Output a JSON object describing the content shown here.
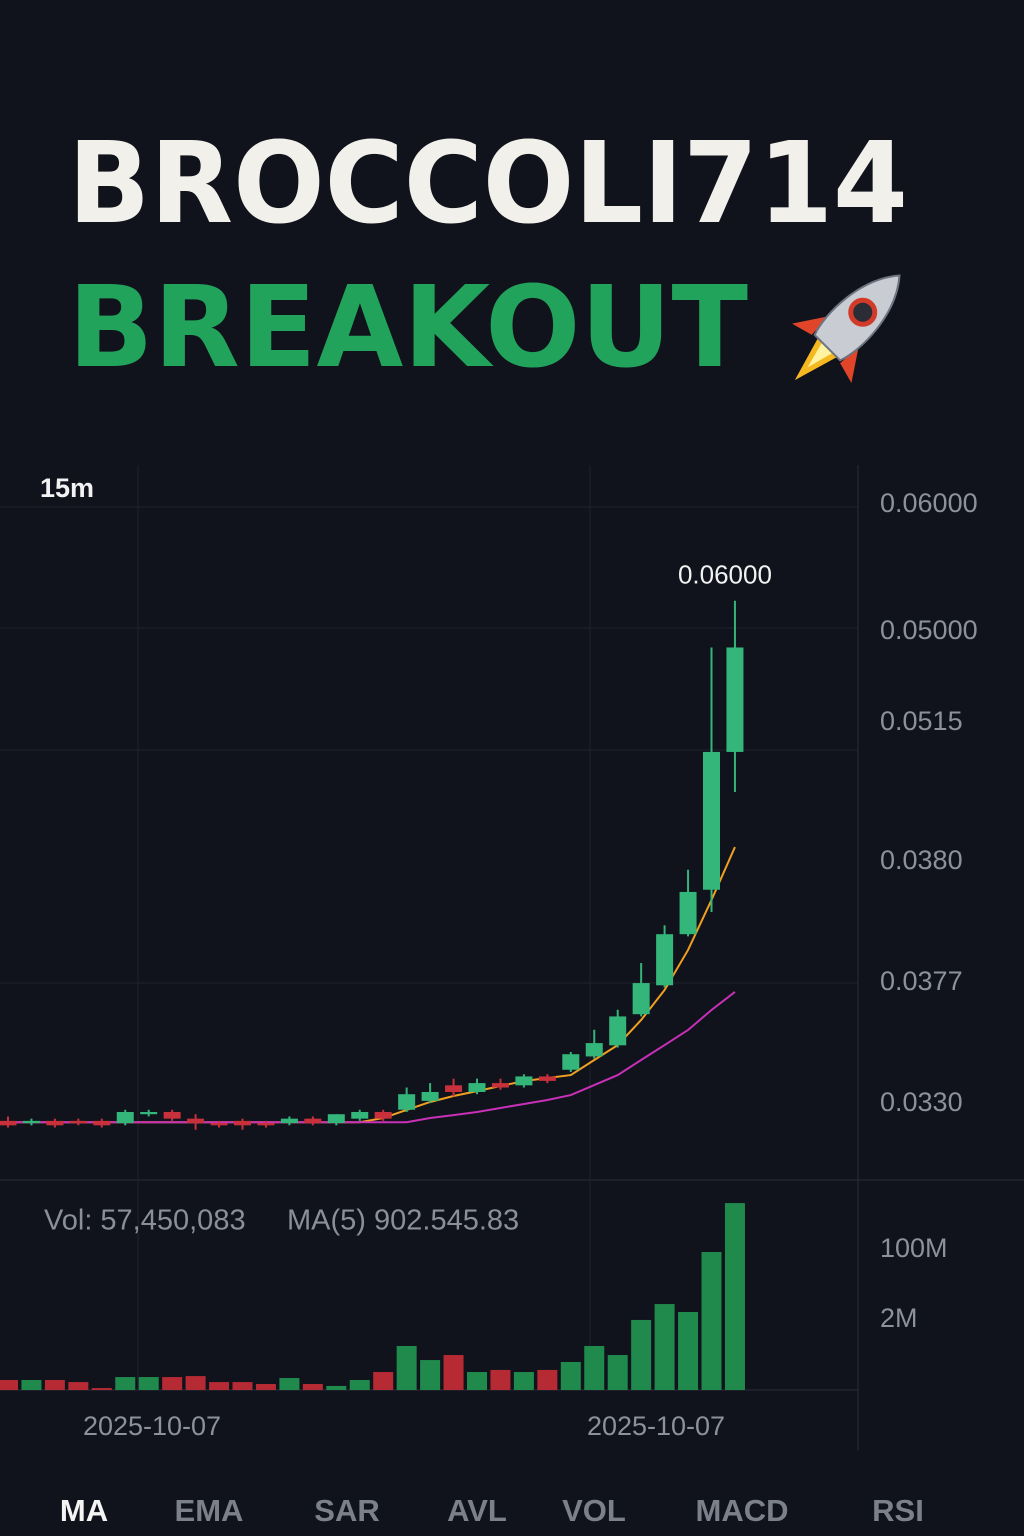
{
  "header": {
    "title": "BROCCOLI714",
    "subtitle": "BREAKOUT"
  },
  "timeframe": "15m",
  "price_labels": [
    "0.06000",
    "0.05000",
    "0.0515",
    "0.0380",
    "0.0377",
    "0.0330"
  ],
  "volume_info": {
    "volume": "Vol: 57,450,083",
    "ma": "MA(5) 902.545.83"
  },
  "volume_labels": [
    "100M",
    "2M"
  ],
  "date_labels": [
    "2025-10-07",
    "2025-10-07"
  ],
  "tabs": [
    "MA",
    "EMA",
    "SAR",
    "AVL",
    "VOL",
    "MACD",
    "RSI"
  ],
  "chart_data": {
    "type": "candlestick",
    "annotation": "0.06000",
    "ylim": [
      0.02954,
      0.06171
    ],
    "up_color": "#34b57a",
    "down_color": "#c8313b",
    "open": [
      0.0322,
      0.0321,
      0.0322,
      0.0322,
      0.0322,
      0.0321,
      0.0325,
      0.0326,
      0.0323,
      0.0321,
      0.0322,
      0.0321,
      0.0321,
      0.0323,
      0.0321,
      0.0323,
      0.0326,
      0.0327,
      0.0331,
      0.0338,
      0.0335,
      0.0339,
      0.0338,
      0.0342,
      0.0345,
      0.0351,
      0.0356,
      0.037,
      0.0383,
      0.0406,
      0.0426,
      0.0488
    ],
    "high": [
      0.0324,
      0.0323,
      0.0323,
      0.0323,
      0.0323,
      0.0327,
      0.0327,
      0.0327,
      0.0325,
      0.0322,
      0.0323,
      0.0322,
      0.0324,
      0.0324,
      0.0325,
      0.0327,
      0.0327,
      0.0337,
      0.0339,
      0.0341,
      0.0341,
      0.0341,
      0.0343,
      0.0343,
      0.0353,
      0.0363,
      0.0372,
      0.0393,
      0.041,
      0.0435,
      0.0535,
      0.0556
    ],
    "low": [
      0.0319,
      0.032,
      0.0319,
      0.032,
      0.0319,
      0.032,
      0.0324,
      0.0322,
      0.0318,
      0.0319,
      0.0318,
      0.0319,
      0.032,
      0.032,
      0.032,
      0.0322,
      0.0322,
      0.0326,
      0.033,
      0.0333,
      0.0334,
      0.0336,
      0.0337,
      0.0339,
      0.0344,
      0.035,
      0.0355,
      0.0369,
      0.0382,
      0.0405,
      0.0416,
      0.047
    ],
    "close": [
      0.032,
      0.0322,
      0.032,
      0.0321,
      0.032,
      0.0326,
      0.0326,
      0.0323,
      0.0321,
      0.032,
      0.032,
      0.032,
      0.0323,
      0.0321,
      0.0325,
      0.0326,
      0.0323,
      0.0334,
      0.0335,
      0.0335,
      0.0339,
      0.0337,
      0.0342,
      0.034,
      0.0352,
      0.0357,
      0.0369,
      0.0384,
      0.0406,
      0.0425,
      0.0488,
      0.0535
    ],
    "ma_series": [
      {
        "color": "#f0a020",
        "values": [
          0.03214,
          0.03214,
          0.03214,
          0.03214,
          0.03214,
          0.03214,
          0.03214,
          0.03214,
          0.03214,
          0.03214,
          0.03214,
          0.03214,
          0.03214,
          0.03214,
          0.03214,
          0.03214,
          0.03233,
          0.03269,
          0.03305,
          0.03332,
          0.03354,
          0.03377,
          0.03399,
          0.03413,
          0.03426,
          0.03494,
          0.03561,
          0.03674,
          0.03809,
          0.03989,
          0.04214,
          0.04452
        ]
      },
      {
        "color": "#c830b8",
        "values": [
          0.03214,
          0.03214,
          0.03214,
          0.03214,
          0.03214,
          0.03214,
          0.03214,
          0.03214,
          0.03214,
          0.03214,
          0.03214,
          0.03214,
          0.03214,
          0.03214,
          0.03214,
          0.03214,
          0.03214,
          0.03214,
          0.03233,
          0.03246,
          0.0326,
          0.03278,
          0.03296,
          0.03314,
          0.03336,
          0.03381,
          0.03426,
          0.03494,
          0.03561,
          0.03629,
          0.03719,
          0.038
        ]
      }
    ],
    "volume": {
      "ylim": [
        0,
        140
      ],
      "values": [
        7.2,
        7.2,
        7.2,
        5.7,
        1.4,
        9.3,
        9.3,
        9.3,
        10,
        5.7,
        5.7,
        4.3,
        8.6,
        4.3,
        2.9,
        7.2,
        12.9,
        31.6,
        21.5,
        25.1,
        12.9,
        14.4,
        12.9,
        14.4,
        20.1,
        31.6,
        25.1,
        50.3,
        61.7,
        56,
        99.1,
        134.2
      ]
    }
  }
}
